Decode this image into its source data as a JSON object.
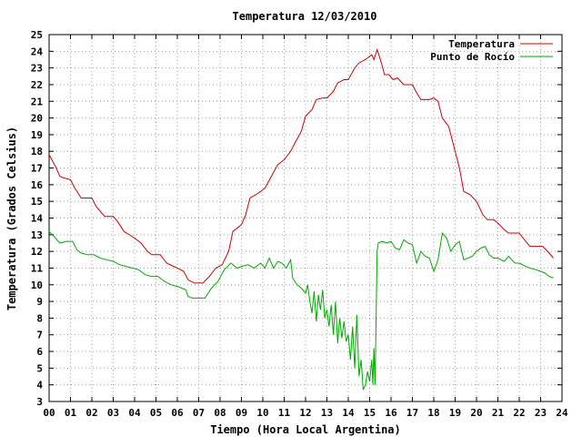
{
  "chart_data": {
    "type": "line",
    "title": "Temperatura 12/03/2010",
    "xlabel": "Tiempo (Hora Local Argentina)",
    "ylabel": "Temperatura (Grados Celsius)",
    "xlim": [
      0,
      24
    ],
    "ylim": [
      3,
      25
    ],
    "x_ticks": [
      "00",
      "01",
      "02",
      "03",
      "04",
      "05",
      "06",
      "07",
      "08",
      "09",
      "10",
      "11",
      "12",
      "13",
      "14",
      "15",
      "16",
      "17",
      "18",
      "19",
      "20",
      "21",
      "22",
      "23",
      "24"
    ],
    "y_ticks": [
      3,
      4,
      5,
      6,
      7,
      8,
      9,
      10,
      11,
      12,
      13,
      14,
      15,
      16,
      17,
      18,
      19,
      20,
      21,
      22,
      23,
      24,
      25
    ],
    "grid": true,
    "legend_position": "top-right",
    "series": [
      {
        "name": "Temperatura",
        "color": "#cc0000",
        "points": [
          [
            0.0,
            17.8
          ],
          [
            0.3,
            17.1
          ],
          [
            0.5,
            16.5
          ],
          [
            0.7,
            16.4
          ],
          [
            1.0,
            16.3
          ],
          [
            1.2,
            15.8
          ],
          [
            1.5,
            15.2
          ],
          [
            2.0,
            15.2
          ],
          [
            2.2,
            14.7
          ],
          [
            2.6,
            14.1
          ],
          [
            3.0,
            14.1
          ],
          [
            3.2,
            13.8
          ],
          [
            3.5,
            13.2
          ],
          [
            4.0,
            12.8
          ],
          [
            4.3,
            12.5
          ],
          [
            4.6,
            12.0
          ],
          [
            4.8,
            11.8
          ],
          [
            5.2,
            11.8
          ],
          [
            5.5,
            11.3
          ],
          [
            6.0,
            11.0
          ],
          [
            6.3,
            10.8
          ],
          [
            6.5,
            10.3
          ],
          [
            6.8,
            10.1
          ],
          [
            7.2,
            10.1
          ],
          [
            7.5,
            10.5
          ],
          [
            7.8,
            11.0
          ],
          [
            8.1,
            11.2
          ],
          [
            8.4,
            12.0
          ],
          [
            8.6,
            13.2
          ],
          [
            9.0,
            13.6
          ],
          [
            9.2,
            14.2
          ],
          [
            9.4,
            15.2
          ],
          [
            9.8,
            15.5
          ],
          [
            10.1,
            15.8
          ],
          [
            10.4,
            16.5
          ],
          [
            10.7,
            17.2
          ],
          [
            11.0,
            17.5
          ],
          [
            11.3,
            18.0
          ],
          [
            11.5,
            18.5
          ],
          [
            11.8,
            19.2
          ],
          [
            12.0,
            20.1
          ],
          [
            12.3,
            20.5
          ],
          [
            12.5,
            21.1
          ],
          [
            12.8,
            21.2
          ],
          [
            13.0,
            21.2
          ],
          [
            13.3,
            21.6
          ],
          [
            13.5,
            22.1
          ],
          [
            13.8,
            22.3
          ],
          [
            14.0,
            22.3
          ],
          [
            14.3,
            23.0
          ],
          [
            14.5,
            23.3
          ],
          [
            14.8,
            23.5
          ],
          [
            15.1,
            23.8
          ],
          [
            15.2,
            23.5
          ],
          [
            15.35,
            24.1
          ],
          [
            15.5,
            23.5
          ],
          [
            15.7,
            22.6
          ],
          [
            15.9,
            22.6
          ],
          [
            16.1,
            22.3
          ],
          [
            16.3,
            22.4
          ],
          [
            16.6,
            22.0
          ],
          [
            17.0,
            22.0
          ],
          [
            17.2,
            21.5
          ],
          [
            17.4,
            21.1
          ],
          [
            17.8,
            21.1
          ],
          [
            18.0,
            21.2
          ],
          [
            18.2,
            21.0
          ],
          [
            18.4,
            20.0
          ],
          [
            18.7,
            19.5
          ],
          [
            19.0,
            18.0
          ],
          [
            19.2,
            17.0
          ],
          [
            19.4,
            15.6
          ],
          [
            19.7,
            15.4
          ],
          [
            20.0,
            15.0
          ],
          [
            20.3,
            14.2
          ],
          [
            20.5,
            13.9
          ],
          [
            20.8,
            13.9
          ],
          [
            21.0,
            13.7
          ],
          [
            21.3,
            13.3
          ],
          [
            21.5,
            13.1
          ],
          [
            22.0,
            13.1
          ],
          [
            22.3,
            12.6
          ],
          [
            22.5,
            12.3
          ],
          [
            22.8,
            12.3
          ],
          [
            23.1,
            12.3
          ],
          [
            23.4,
            11.9
          ],
          [
            23.6,
            11.6
          ]
        ]
      },
      {
        "name": "Punto de Rocío",
        "color": "#00aa00",
        "points": [
          [
            0.0,
            13.2
          ],
          [
            0.3,
            12.8
          ],
          [
            0.5,
            12.5
          ],
          [
            0.8,
            12.6
          ],
          [
            1.1,
            12.6
          ],
          [
            1.3,
            12.1
          ],
          [
            1.5,
            11.9
          ],
          [
            1.8,
            11.8
          ],
          [
            2.1,
            11.8
          ],
          [
            2.4,
            11.6
          ],
          [
            2.7,
            11.5
          ],
          [
            3.0,
            11.4
          ],
          [
            3.3,
            11.2
          ],
          [
            3.6,
            11.1
          ],
          [
            3.9,
            11.0
          ],
          [
            4.2,
            10.9
          ],
          [
            4.5,
            10.6
          ],
          [
            4.8,
            10.5
          ],
          [
            5.1,
            10.5
          ],
          [
            5.4,
            10.2
          ],
          [
            5.7,
            10.0
          ],
          [
            6.0,
            9.9
          ],
          [
            6.2,
            9.8
          ],
          [
            6.4,
            9.7
          ],
          [
            6.5,
            9.3
          ],
          [
            6.7,
            9.2
          ],
          [
            7.0,
            9.2
          ],
          [
            7.3,
            9.2
          ],
          [
            7.6,
            9.8
          ],
          [
            7.9,
            10.2
          ],
          [
            8.2,
            10.9
          ],
          [
            8.5,
            11.3
          ],
          [
            8.8,
            11.0
          ],
          [
            9.0,
            11.1
          ],
          [
            9.3,
            11.2
          ],
          [
            9.6,
            11.0
          ],
          [
            9.9,
            11.3
          ],
          [
            10.1,
            11.0
          ],
          [
            10.3,
            11.6
          ],
          [
            10.5,
            11.0
          ],
          [
            10.7,
            11.4
          ],
          [
            10.9,
            11.3
          ],
          [
            11.1,
            11.0
          ],
          [
            11.3,
            11.5
          ],
          [
            11.4,
            10.4
          ],
          [
            11.6,
            10.0
          ],
          [
            11.8,
            9.8
          ],
          [
            12.0,
            9.5
          ],
          [
            12.1,
            10.0
          ],
          [
            12.2,
            9.0
          ],
          [
            12.3,
            8.3
          ],
          [
            12.4,
            9.6
          ],
          [
            12.5,
            7.8
          ],
          [
            12.6,
            9.4
          ],
          [
            12.7,
            8.5
          ],
          [
            12.8,
            9.7
          ],
          [
            12.9,
            8.0
          ],
          [
            13.0,
            8.5
          ],
          [
            13.1,
            7.5
          ],
          [
            13.2,
            8.8
          ],
          [
            13.3,
            7.0
          ],
          [
            13.4,
            9.0
          ],
          [
            13.5,
            6.5
          ],
          [
            13.6,
            8.0
          ],
          [
            13.7,
            6.8
          ],
          [
            13.8,
            7.8
          ],
          [
            13.9,
            6.6
          ],
          [
            14.0,
            7.0
          ],
          [
            14.1,
            5.5
          ],
          [
            14.2,
            7.5
          ],
          [
            14.3,
            5.0
          ],
          [
            14.4,
            8.2
          ],
          [
            14.5,
            4.5
          ],
          [
            14.6,
            5.5
          ],
          [
            14.7,
            3.7
          ],
          [
            14.8,
            4.0
          ],
          [
            14.9,
            4.8
          ],
          [
            15.0,
            4.2
          ],
          [
            15.1,
            5.5
          ],
          [
            15.15,
            4.0
          ],
          [
            15.2,
            6.2
          ],
          [
            15.25,
            4.0
          ],
          [
            15.3,
            8.0
          ],
          [
            15.35,
            12.0
          ],
          [
            15.4,
            12.5
          ],
          [
            15.6,
            12.6
          ],
          [
            15.8,
            12.5
          ],
          [
            16.0,
            12.6
          ],
          [
            16.2,
            12.2
          ],
          [
            16.4,
            12.1
          ],
          [
            16.6,
            12.7
          ],
          [
            16.8,
            12.5
          ],
          [
            17.0,
            12.4
          ],
          [
            17.2,
            11.3
          ],
          [
            17.4,
            12.0
          ],
          [
            17.6,
            11.7
          ],
          [
            17.8,
            11.6
          ],
          [
            18.0,
            10.8
          ],
          [
            18.2,
            11.5
          ],
          [
            18.4,
            13.1
          ],
          [
            18.6,
            12.8
          ],
          [
            18.8,
            12.0
          ],
          [
            19.0,
            12.4
          ],
          [
            19.2,
            12.6
          ],
          [
            19.4,
            11.5
          ],
          [
            19.6,
            11.6
          ],
          [
            19.8,
            11.7
          ],
          [
            20.0,
            12.0
          ],
          [
            20.2,
            12.2
          ],
          [
            20.4,
            12.3
          ],
          [
            20.6,
            11.8
          ],
          [
            20.8,
            11.6
          ],
          [
            21.0,
            11.6
          ],
          [
            21.3,
            11.4
          ],
          [
            21.5,
            11.7
          ],
          [
            21.8,
            11.3
          ],
          [
            22.0,
            11.3
          ],
          [
            22.3,
            11.1
          ],
          [
            22.5,
            11.0
          ],
          [
            22.8,
            10.9
          ],
          [
            23.0,
            10.8
          ],
          [
            23.2,
            10.7
          ],
          [
            23.4,
            10.5
          ],
          [
            23.6,
            10.4
          ]
        ]
      }
    ]
  }
}
